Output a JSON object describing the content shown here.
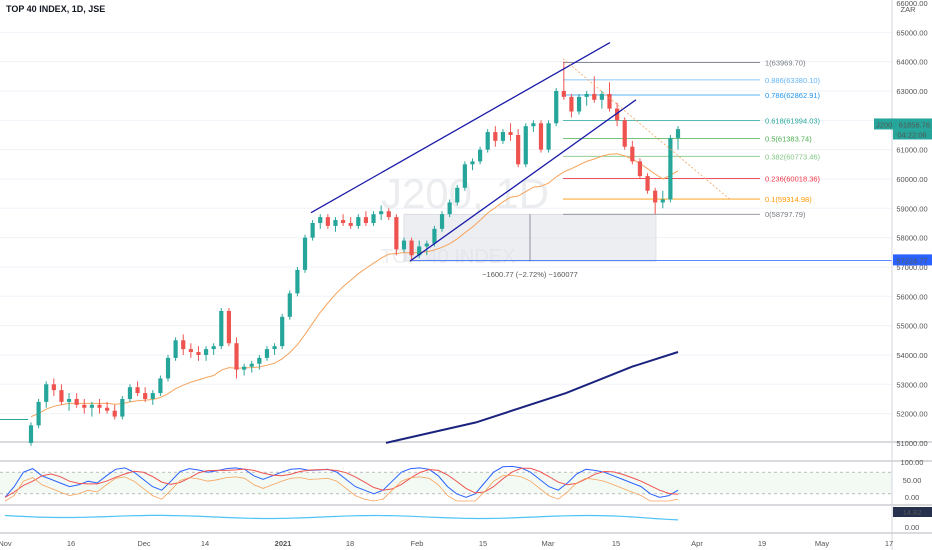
{
  "header": {
    "title": "TOP 40 INDEX, 1D, JSE",
    "currency": "ZAR"
  },
  "watermark": {
    "symbol": "J200, 1D",
    "name": "TOP 40 INDEX"
  },
  "chart_data": {
    "type": "candlestick",
    "y_axis": {
      "ylim": [
        50800,
        66000
      ],
      "ticks": [
        "66000.00",
        "65000.00",
        "64000.00",
        "63000.00",
        "62000.00",
        "61000.00",
        "60000.00",
        "59000.00",
        "58000.00",
        "57000.00",
        "56000.00",
        "55000.00",
        "54000.00",
        "53000.00",
        "52000.00",
        "51000.00"
      ]
    },
    "x_axis": {
      "ticks": [
        "Nov",
        "16",
        "Dec",
        "14",
        "2021",
        "18",
        "Feb",
        "15",
        "Mar",
        "15",
        "Apr",
        "19",
        "May",
        "17"
      ],
      "ylim": [
        0,
        1
      ]
    },
    "candles": [
      [
        51000,
        51700,
        50900,
        51600
      ],
      [
        51600,
        52500,
        51500,
        52400
      ],
      [
        52400,
        53100,
        52200,
        53000
      ],
      [
        53000,
        53200,
        52600,
        52800
      ],
      [
        52800,
        53000,
        52300,
        52400
      ],
      [
        52400,
        52700,
        52100,
        52500
      ],
      [
        52500,
        52700,
        52200,
        52300
      ],
      [
        52300,
        52500,
        52000,
        52200
      ],
      [
        52200,
        52400,
        51900,
        52300
      ],
      [
        52300,
        52500,
        52000,
        52200
      ],
      [
        52200,
        52400,
        52000,
        52100
      ],
      [
        52100,
        52300,
        51800,
        51900
      ],
      [
        51900,
        52600,
        51800,
        52500
      ],
      [
        52500,
        53000,
        52400,
        52900
      ],
      [
        52900,
        53100,
        52600,
        52700
      ],
      [
        52700,
        52900,
        52400,
        52500
      ],
      [
        52500,
        52800,
        52300,
        52700
      ],
      [
        52700,
        53300,
        52600,
        53200
      ],
      [
        53200,
        54000,
        53100,
        53900
      ],
      [
        53900,
        54600,
        53800,
        54500
      ],
      [
        54500,
        54700,
        54000,
        54200
      ],
      [
        54200,
        54400,
        53900,
        54100
      ],
      [
        54100,
        54300,
        53800,
        54000
      ],
      [
        54000,
        54300,
        53800,
        54200
      ],
      [
        54200,
        54400,
        54000,
        54300
      ],
      [
        54300,
        55600,
        54200,
        55500
      ],
      [
        55500,
        55600,
        54300,
        54400
      ],
      [
        54400,
        54600,
        53200,
        53500
      ],
      [
        53500,
        53700,
        53300,
        53600
      ],
      [
        53600,
        53800,
        53400,
        53700
      ],
      [
        53700,
        54000,
        53500,
        53900
      ],
      [
        53900,
        54300,
        53800,
        54200
      ],
      [
        54200,
        54400,
        54000,
        54300
      ],
      [
        54300,
        55400,
        54200,
        55300
      ],
      [
        55300,
        56200,
        55200,
        56100
      ],
      [
        56100,
        57000,
        56000,
        56900
      ],
      [
        56900,
        58100,
        56800,
        58000
      ],
      [
        58000,
        58600,
        57900,
        58500
      ],
      [
        58500,
        58800,
        58300,
        58700
      ],
      [
        58700,
        58800,
        58300,
        58400
      ],
      [
        58400,
        58700,
        58200,
        58600
      ],
      [
        58600,
        58800,
        58400,
        58500
      ],
      [
        58500,
        58700,
        58300,
        58400
      ],
      [
        58400,
        58800,
        58300,
        58700
      ],
      [
        58700,
        58900,
        58400,
        58500
      ],
      [
        58500,
        58900,
        58400,
        58800
      ],
      [
        58800,
        59100,
        58600,
        58900
      ],
      [
        58900,
        59000,
        58600,
        58700
      ],
      [
        58700,
        58800,
        57400,
        57600
      ],
      [
        57600,
        58000,
        57500,
        57900
      ],
      [
        57900,
        58000,
        57200,
        57400
      ],
      [
        57400,
        57900,
        57300,
        57700
      ],
      [
        57700,
        57900,
        57400,
        57800
      ],
      [
        57800,
        58400,
        57700,
        58300
      ],
      [
        58300,
        58900,
        58200,
        58800
      ],
      [
        58800,
        59300,
        58700,
        59200
      ],
      [
        59200,
        59800,
        59100,
        59700
      ],
      [
        59700,
        60600,
        59600,
        60500
      ],
      [
        60500,
        60700,
        60300,
        60600
      ],
      [
        60600,
        61100,
        60500,
        61000
      ],
      [
        61000,
        61700,
        60900,
        61600
      ],
      [
        61600,
        61800,
        61100,
        61300
      ],
      [
        61300,
        61700,
        61200,
        61600
      ],
      [
        61600,
        61900,
        61300,
        61500
      ],
      [
        61500,
        61700,
        60400,
        60500
      ],
      [
        60500,
        61900,
        60400,
        61800
      ],
      [
        61800,
        62000,
        61600,
        61900
      ],
      [
        61900,
        62000,
        60900,
        61000
      ],
      [
        61000,
        62000,
        60900,
        61900
      ],
      [
        61900,
        63100,
        61800,
        63000
      ],
      [
        63000,
        64000,
        62700,
        62800
      ],
      [
        62800,
        62900,
        62100,
        62300
      ],
      [
        62300,
        62900,
        62200,
        62800
      ],
      [
        62800,
        63000,
        62500,
        62900
      ],
      [
        62900,
        63500,
        62600,
        62700
      ],
      [
        62700,
        63000,
        62400,
        62900
      ],
      [
        62900,
        63300,
        62300,
        62400
      ],
      [
        62400,
        62600,
        61800,
        62000
      ],
      [
        62000,
        62100,
        61000,
        61100
      ],
      [
        61100,
        61300,
        60500,
        60600
      ],
      [
        60600,
        60700,
        60000,
        60100
      ],
      [
        60100,
        60200,
        59500,
        59600
      ],
      [
        59600,
        59700,
        58797,
        59200
      ],
      [
        59200,
        59600,
        59000,
        59300
      ],
      [
        59300,
        61500,
        59200,
        61400
      ],
      [
        61400,
        61800,
        61000,
        61700
      ]
    ],
    "ema20": [
      51900,
      52000,
      52150,
      52250,
      52300,
      52350,
      52350,
      52350,
      52350,
      52350,
      52350,
      52320,
      52340,
      52400,
      52440,
      52460,
      52480,
      52550,
      52680,
      52850,
      52970,
      53070,
      53150,
      53230,
      53300,
      53480,
      53570,
      53550,
      53560,
      53570,
      53590,
      53650,
      53720,
      53870,
      54080,
      54350,
      54700,
      55080,
      55450,
      55770,
      56070,
      56330,
      56550,
      56770,
      56950,
      57130,
      57300,
      57440,
      57460,
      57490,
      57480,
      57500,
      57520,
      57580,
      57670,
      57790,
      57960,
      58170,
      58360,
      58590,
      58840,
      59020,
      59220,
      59380,
      59420,
      59570,
      59720,
      59750,
      59860,
      60070,
      60240,
      60350,
      60480,
      60600,
      60680,
      60780,
      60840,
      60860,
      60790,
      60680,
      60530,
      60350,
      60170,
      60000,
      60130,
      60280
    ],
    "sma200": [
      [
        "x",
        386,
        "y",
        51000
      ],
      [
        "x",
        476,
        "y",
        51700
      ],
      [
        "x",
        566,
        "y",
        52700
      ],
      [
        "x",
        632,
        "y",
        53600
      ],
      [
        "x",
        678,
        "y",
        54100
      ]
    ],
    "channel": {
      "upper": [
        [
          58850,
          0
        ],
        [
          64650,
          1
        ]
      ],
      "lower": [
        [
          57200,
          0
        ],
        [
          62700,
          1
        ]
      ]
    },
    "fibonacci": [
      {
        "label": "1(63969.70)",
        "value": 63969.7,
        "color": "#787b86"
      },
      {
        "label": "0.886(63380.10)",
        "value": 63380.1,
        "color": "#64b5f6"
      },
      {
        "label": "0.786(62862.91)",
        "value": 62862.91,
        "color": "#2196f3"
      },
      {
        "label": "0.618(61994.03)",
        "value": 61994.03,
        "color": "#26a69a"
      },
      {
        "label": "0.5(61383.74)",
        "value": 61383.74,
        "color": "#4caf50"
      },
      {
        "label": "0.382(60773.46)",
        "value": 60773.46,
        "color": "#81c784"
      },
      {
        "label": "0.236(60018.36)",
        "value": 60018.36,
        "color": "#f23645"
      },
      {
        "label": "0.1(59314.98)",
        "value": 59314.98,
        "color": "#ff9800"
      },
      {
        "label": "0(58797.79)",
        "value": 58797.79,
        "color": "#787b86"
      }
    ],
    "measure_box": {
      "label": "−1600.77 (−2.72%) −160077",
      "top": 58797.79,
      "bottom": 57197.02
    },
    "price_labels": [
      {
        "label": "J200",
        "value": "61858.76",
        "color": "#26a69a"
      },
      {
        "label": "",
        "value": "04:22:06",
        "color": "#26a69a"
      },
      {
        "label": "",
        "value": "57224.77",
        "color": "#2962ff"
      }
    ],
    "oscillator1": {
      "ticks": [
        "100.00",
        "50.00",
        "0.00"
      ],
      "levels": [
        80,
        20
      ]
    },
    "oscillator2": {
      "value": "14.82",
      "ticks": [
        "0.00"
      ]
    }
  },
  "colors": {
    "up": "#26a69a",
    "down": "#ef5350",
    "ema": "#f7a35c",
    "sma": "#1a237e",
    "channel": "#1a1aa8",
    "osc_k": "#2962ff",
    "osc_d": "#ef5350",
    "osc_b": "#26a69a"
  }
}
